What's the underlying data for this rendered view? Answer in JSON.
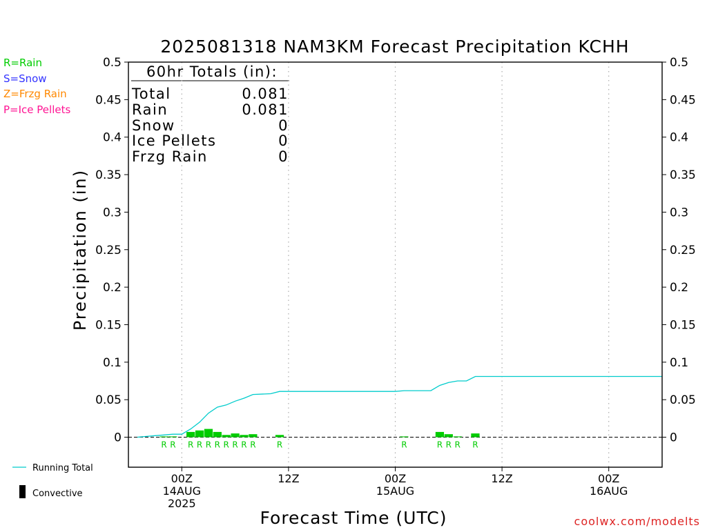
{
  "chart_data": {
    "type": "bar",
    "title": "2025081318 NAM3KM Forecast Precipitation KCHH",
    "ylabel": "Precipitation (in)",
    "xlabel": "Forecast Time (UTC)",
    "ylim": [
      -0.04,
      0.5
    ],
    "yticks": [
      0,
      0.05,
      0.1,
      0.15,
      0.2,
      0.25,
      0.3,
      0.35,
      0.4,
      0.45,
      0.5
    ],
    "xrange_hours_from_00Z_14AUG": [
      -6,
      54
    ],
    "xticks": [
      {
        "hour": 0,
        "lines": [
          "00Z",
          "14AUG",
          "2025"
        ]
      },
      {
        "hour": 12,
        "lines": [
          "12Z"
        ]
      },
      {
        "hour": 24,
        "lines": [
          "00Z",
          "15AUG"
        ]
      },
      {
        "hour": 36,
        "lines": [
          "12Z"
        ]
      },
      {
        "hour": 48,
        "lines": [
          "00Z",
          "16AUG"
        ]
      }
    ],
    "grid_vertical": true,
    "legend_top_left": [
      {
        "label": "R=Rain",
        "color": "#00cc00"
      },
      {
        "label": "S=Snow",
        "color": "#3333ff"
      },
      {
        "label": "Z=Frzg Rain",
        "color": "#ff8800"
      },
      {
        "label": "P=Ice Pellets",
        "color": "#ff1493"
      }
    ],
    "legend_bottom_left": [
      {
        "label": "Running Total",
        "color": "#00cccc",
        "kind": "line"
      },
      {
        "label": "Convective",
        "color": "#000000",
        "kind": "bar"
      }
    ],
    "totals_box": {
      "header": "60hr Totals (in):",
      "rows": [
        {
          "label": "Total",
          "value": "0.081"
        },
        {
          "label": "Rain",
          "value": "0.081"
        },
        {
          "label": "Snow",
          "value": "0"
        },
        {
          "label": "Ice Pellets",
          "value": "0"
        },
        {
          "label": "Frzg Rain",
          "value": "0"
        }
      ]
    },
    "series": [
      {
        "name": "Rain",
        "type": "bar",
        "color": "#00cc00",
        "points": [
          {
            "hour": -2,
            "value": 0.001
          },
          {
            "hour": -1,
            "value": 0.001
          },
          {
            "hour": 1,
            "value": 0.007
          },
          {
            "hour": 2,
            "value": 0.009
          },
          {
            "hour": 3,
            "value": 0.011
          },
          {
            "hour": 4,
            "value": 0.007
          },
          {
            "hour": 5,
            "value": 0.003
          },
          {
            "hour": 6,
            "value": 0.005
          },
          {
            "hour": 7,
            "value": 0.003
          },
          {
            "hour": 8,
            "value": 0.004
          },
          {
            "hour": 11,
            "value": 0.003
          },
          {
            "hour": 25,
            "value": 0.001
          },
          {
            "hour": 29,
            "value": 0.007
          },
          {
            "hour": 30,
            "value": 0.004
          },
          {
            "hour": 31,
            "value": 0.001
          },
          {
            "hour": 33,
            "value": 0.005
          }
        ]
      },
      {
        "name": "Running Total",
        "type": "line",
        "color": "#00cccc",
        "points": [
          {
            "hour": -5,
            "value": 0
          },
          {
            "hour": -4,
            "value": 0.001
          },
          {
            "hour": -3,
            "value": 0.002
          },
          {
            "hour": -2,
            "value": 0.003
          },
          {
            "hour": -1,
            "value": 0.004
          },
          {
            "hour": 0,
            "value": 0.004
          },
          {
            "hour": 1,
            "value": 0.011
          },
          {
            "hour": 2,
            "value": 0.02
          },
          {
            "hour": 3,
            "value": 0.032
          },
          {
            "hour": 4,
            "value": 0.04
          },
          {
            "hour": 5,
            "value": 0.043
          },
          {
            "hour": 6,
            "value": 0.048
          },
          {
            "hour": 7,
            "value": 0.052
          },
          {
            "hour": 8,
            "value": 0.057
          },
          {
            "hour": 10,
            "value": 0.058
          },
          {
            "hour": 11,
            "value": 0.061
          },
          {
            "hour": 24,
            "value": 0.061
          },
          {
            "hour": 25,
            "value": 0.062
          },
          {
            "hour": 28,
            "value": 0.062
          },
          {
            "hour": 29,
            "value": 0.069
          },
          {
            "hour": 30,
            "value": 0.073
          },
          {
            "hour": 31,
            "value": 0.075
          },
          {
            "hour": 32,
            "value": 0.075
          },
          {
            "hour": 33,
            "value": 0.081
          },
          {
            "hour": 54,
            "value": 0.081
          }
        ]
      }
    ],
    "type_markers": [
      {
        "hour": -2,
        "label": "R",
        "color": "#00cc00"
      },
      {
        "hour": -1,
        "label": "R",
        "color": "#00cc00"
      },
      {
        "hour": 1,
        "label": "R",
        "color": "#00cc00"
      },
      {
        "hour": 2,
        "label": "R",
        "color": "#00cc00"
      },
      {
        "hour": 3,
        "label": "R",
        "color": "#00cc00"
      },
      {
        "hour": 4,
        "label": "R",
        "color": "#00cc00"
      },
      {
        "hour": 5,
        "label": "R",
        "color": "#00cc00"
      },
      {
        "hour": 6,
        "label": "R",
        "color": "#00cc00"
      },
      {
        "hour": 7,
        "label": "R",
        "color": "#00cc00"
      },
      {
        "hour": 8,
        "label": "R",
        "color": "#00cc00"
      },
      {
        "hour": 11,
        "label": "R",
        "color": "#00cc00"
      },
      {
        "hour": 25,
        "label": "R",
        "color": "#00cc00"
      },
      {
        "hour": 29,
        "label": "R",
        "color": "#00cc00"
      },
      {
        "hour": 30,
        "label": "R",
        "color": "#00cc00"
      },
      {
        "hour": 31,
        "label": "R",
        "color": "#00cc00"
      },
      {
        "hour": 33,
        "label": "R",
        "color": "#00cc00"
      }
    ],
    "watermark": {
      "text": "coolwx.com/modelts",
      "color": "#dd2222"
    }
  }
}
